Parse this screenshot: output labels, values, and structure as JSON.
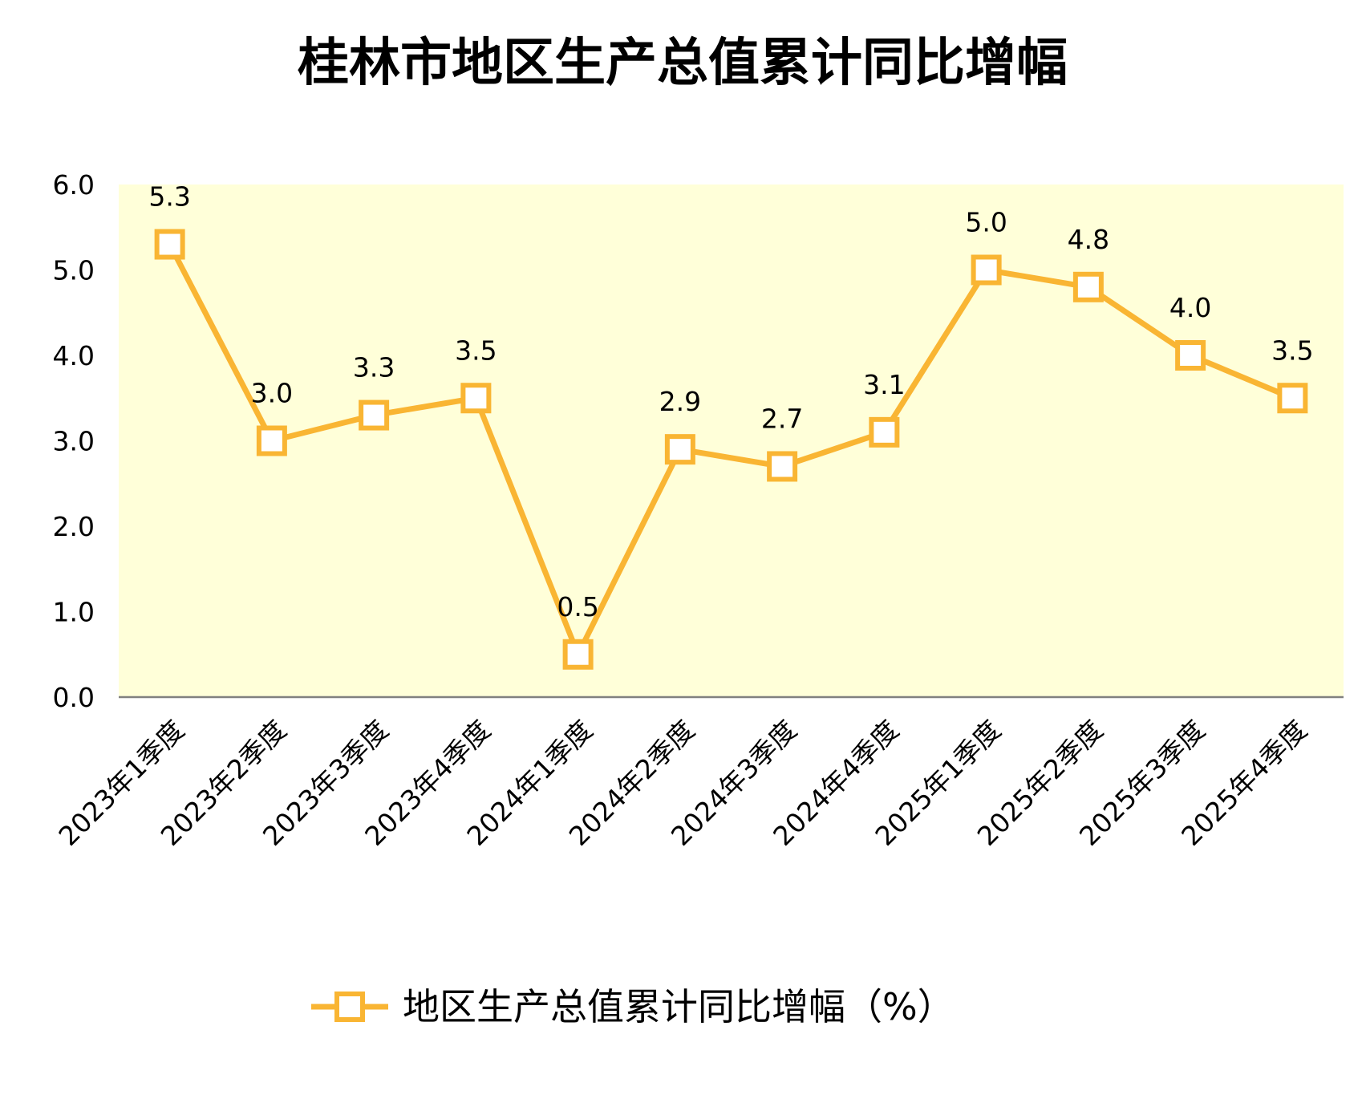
{
  "chart_data": {
    "type": "line",
    "title": "桂林市地区生产总值累计同比增幅",
    "xlabel": "",
    "ylabel": "",
    "ylim": [
      0,
      6
    ],
    "yticks": [
      "0.0",
      "1.0",
      "2.0",
      "3.0",
      "4.0",
      "5.0",
      "6.0"
    ],
    "grid": false,
    "legend_position": "bottom",
    "categories": [
      "2023年1季度",
      "2023年2季度",
      "2023年3季度",
      "2023年4季度",
      "2024年1季度",
      "2024年2季度",
      "2024年3季度",
      "2024年4季度",
      "2025年1季度",
      "2025年2季度",
      "2025年3季度",
      "2025年4季度"
    ],
    "series": [
      {
        "name": "地区生产总值累计同比增幅（%）",
        "values": [
          5.3,
          3.0,
          3.3,
          3.5,
          0.5,
          2.9,
          2.7,
          3.1,
          5.0,
          4.8,
          4.0,
          3.5
        ],
        "labels": [
          "5.3",
          "3.0",
          "3.3",
          "3.5",
          "0.5",
          "2.9",
          "2.7",
          "3.1",
          "5.0",
          "4.8",
          "4.0",
          "3.5"
        ]
      }
    ],
    "colors": {
      "line": "#F9B533",
      "marker_fill": "#FFFFFF",
      "plot_background": "#FFFFD9",
      "axis": "#808080"
    }
  }
}
